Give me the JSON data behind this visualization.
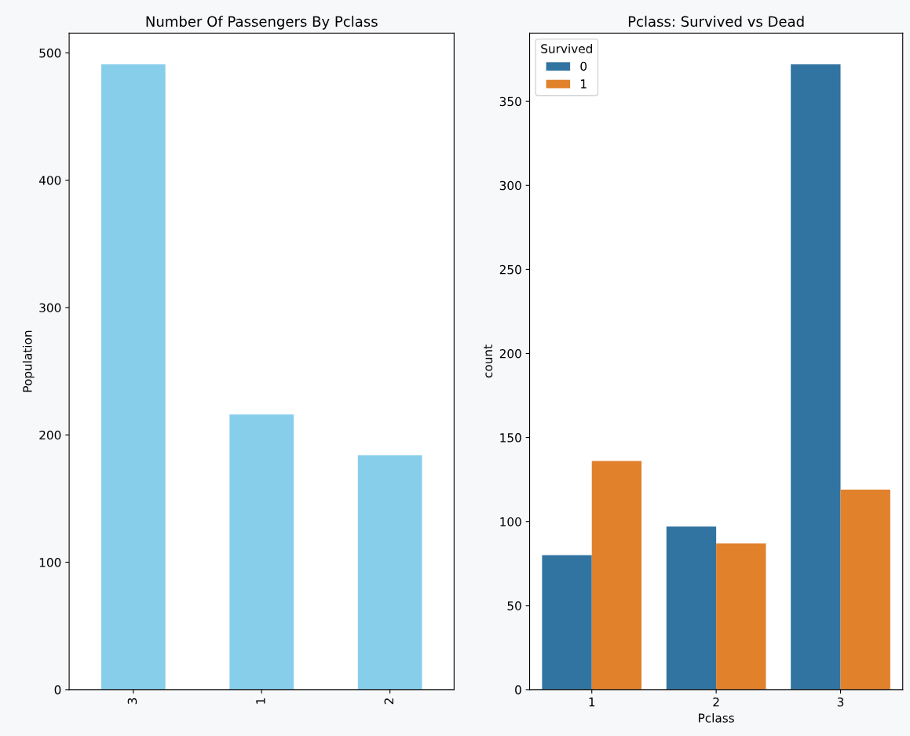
{
  "chart_data": [
    {
      "type": "bar",
      "title": "Number Of Passengers By Pclass",
      "ylabel": "Population",
      "categories": [
        "3",
        "1",
        "2"
      ],
      "values": [
        491,
        216,
        184
      ],
      "color": "#87ceeb",
      "ylim": [
        0,
        515.5
      ],
      "yticks": [
        0,
        100,
        200,
        300,
        400,
        500
      ],
      "grid": false,
      "legend": false
    },
    {
      "type": "bar",
      "title": "Pclass: Survived vs Dead",
      "xlabel": "Pclass",
      "ylabel": "count",
      "categories": [
        "1",
        "2",
        "3"
      ],
      "legend_title": "Survived",
      "series": [
        {
          "name": "0",
          "color": "#3274a1",
          "values": [
            80,
            97,
            372
          ]
        },
        {
          "name": "1",
          "color": "#e1812c",
          "values": [
            136,
            87,
            119
          ]
        }
      ],
      "ylim": [
        0,
        390.6
      ],
      "yticks": [
        0,
        50,
        100,
        150,
        200,
        250,
        300,
        350
      ],
      "grid": false,
      "legend": "top left"
    }
  ]
}
